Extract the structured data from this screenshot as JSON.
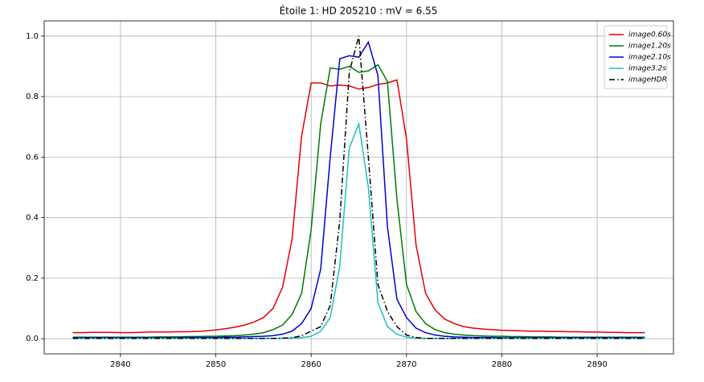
{
  "chart_data": {
    "type": "line",
    "title": "Étoile 1: HD 205210 : mV = 6.55",
    "x": [
      2835,
      2836,
      2837,
      2838,
      2839,
      2840,
      2841,
      2842,
      2843,
      2844,
      2845,
      2846,
      2847,
      2848,
      2849,
      2850,
      2851,
      2852,
      2853,
      2854,
      2855,
      2856,
      2857,
      2858,
      2859,
      2860,
      2861,
      2862,
      2863,
      2864,
      2865,
      2866,
      2867,
      2868,
      2869,
      2870,
      2871,
      2872,
      2873,
      2874,
      2875,
      2876,
      2877,
      2878,
      2879,
      2880,
      2881,
      2882,
      2883,
      2884,
      2885,
      2886,
      2887,
      2888,
      2889,
      2890,
      2891,
      2892,
      2893,
      2894,
      2895
    ],
    "series": [
      {
        "name": "image0.60s",
        "color": "#e00000",
        "dash": "solid",
        "values": [
          0.02,
          0.02,
          0.021,
          0.021,
          0.021,
          0.02,
          0.02,
          0.021,
          0.022,
          0.022,
          0.022,
          0.023,
          0.023,
          0.024,
          0.026,
          0.029,
          0.033,
          0.038,
          0.045,
          0.055,
          0.07,
          0.1,
          0.17,
          0.33,
          0.67,
          0.845,
          0.845,
          0.835,
          0.838,
          0.835,
          0.825,
          0.83,
          0.84,
          0.845,
          0.855,
          0.66,
          0.31,
          0.15,
          0.095,
          0.065,
          0.05,
          0.04,
          0.035,
          0.032,
          0.03,
          0.028,
          0.027,
          0.026,
          0.025,
          0.025,
          0.024,
          0.024,
          0.023,
          0.023,
          0.022,
          0.022,
          0.021,
          0.021,
          0.02,
          0.02,
          0.02
        ]
      },
      {
        "name": "image1.20s",
        "color": "#007a00",
        "dash": "solid",
        "values": [
          0.005,
          0.005,
          0.005,
          0.005,
          0.005,
          0.005,
          0.005,
          0.005,
          0.005,
          0.006,
          0.006,
          0.006,
          0.007,
          0.007,
          0.008,
          0.008,
          0.009,
          0.01,
          0.012,
          0.015,
          0.02,
          0.03,
          0.045,
          0.08,
          0.15,
          0.36,
          0.71,
          0.895,
          0.89,
          0.9,
          0.88,
          0.885,
          0.905,
          0.85,
          0.46,
          0.18,
          0.09,
          0.05,
          0.03,
          0.02,
          0.015,
          0.012,
          0.01,
          0.009,
          0.008,
          0.008,
          0.007,
          0.007,
          0.006,
          0.006,
          0.006,
          0.005,
          0.005,
          0.005,
          0.005,
          0.005,
          0.005,
          0.005,
          0.005,
          0.005,
          0.005
        ]
      },
      {
        "name": "image2.10s",
        "color": "#0000cc",
        "dash": "solid",
        "values": [
          0.003,
          0.003,
          0.003,
          0.003,
          0.003,
          0.003,
          0.003,
          0.003,
          0.003,
          0.003,
          0.003,
          0.003,
          0.004,
          0.004,
          0.004,
          0.004,
          0.005,
          0.005,
          0.006,
          0.007,
          0.008,
          0.01,
          0.015,
          0.025,
          0.05,
          0.1,
          0.23,
          0.6,
          0.925,
          0.935,
          0.93,
          0.98,
          0.87,
          0.37,
          0.13,
          0.07,
          0.035,
          0.02,
          0.012,
          0.008,
          0.006,
          0.005,
          0.004,
          0.004,
          0.004,
          0.003,
          0.003,
          0.003,
          0.003,
          0.003,
          0.003,
          0.003,
          0.003,
          0.003,
          0.003,
          0.003,
          0.003,
          0.003,
          0.003,
          0.003,
          0.003
        ]
      },
      {
        "name": "image3.2s",
        "color": "#1ec0c0",
        "dash": "solid",
        "values": [
          0.001,
          0.001,
          0.001,
          0.001,
          0.001,
          0.001,
          0.001,
          0.001,
          0.001,
          0.001,
          0.001,
          0.001,
          0.001,
          0.001,
          0.001,
          0.001,
          0.001,
          0.001,
          0.001,
          0.001,
          0.001,
          0.001,
          0.001,
          0.002,
          0.004,
          0.008,
          0.025,
          0.07,
          0.24,
          0.63,
          0.71,
          0.5,
          0.12,
          0.04,
          0.015,
          0.005,
          0.002,
          0.001,
          0.001,
          0.001,
          0.001,
          0.001,
          0.001,
          0.001,
          0.001,
          0.001,
          0.001,
          0.001,
          0.001,
          0.001,
          0.001,
          0.001,
          0.001,
          0.001,
          0.001,
          0.001,
          0.001,
          0.001,
          0.001,
          0.001,
          0.001
        ]
      },
      {
        "name": "imageHDR",
        "color": "#000000",
        "dash": "dashdot",
        "values": [
          0.001,
          0.001,
          0.001,
          0.001,
          0.001,
          0.001,
          0.001,
          0.001,
          0.001,
          0.001,
          0.001,
          0.001,
          0.001,
          0.001,
          0.001,
          0.001,
          0.001,
          0.001,
          0.001,
          0.001,
          0.001,
          0.001,
          0.002,
          0.003,
          0.01,
          0.025,
          0.04,
          0.11,
          0.39,
          0.88,
          1.0,
          0.6,
          0.18,
          0.09,
          0.04,
          0.012,
          0.004,
          0.001,
          0.001,
          0.001,
          0.001,
          0.001,
          0.001,
          0.001,
          0.001,
          0.001,
          0.001,
          0.001,
          0.001,
          0.001,
          0.001,
          0.001,
          0.001,
          0.001,
          0.001,
          0.001,
          0.001,
          0.001,
          0.001,
          0.001,
          0.001
        ]
      }
    ],
    "xlim": [
      2832,
      2898
    ],
    "xticks": [
      2840,
      2850,
      2860,
      2870,
      2880,
      2890
    ],
    "ylim": [
      -0.05,
      1.05
    ],
    "yticks": [
      {
        "value": 0,
        "label": "0.0"
      },
      0.2,
      0.4,
      0.6,
      0.8,
      {
        "value": 1,
        "label": "1.0"
      }
    ],
    "grid": true,
    "legend": "upper right"
  }
}
